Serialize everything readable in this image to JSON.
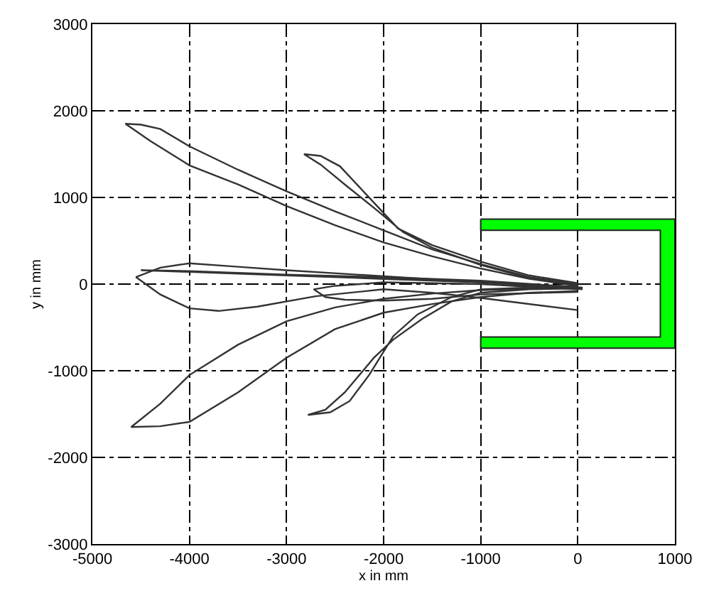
{
  "chart_data": {
    "type": "line",
    "xlabel": "x in mm",
    "ylabel": "y in mm",
    "xlim": [
      -5000,
      1000
    ],
    "xticks": [
      -5000,
      -4000,
      -3000,
      -2000,
      -1000,
      0,
      1000
    ],
    "ylim": [
      -3000,
      3000
    ],
    "yticks": [
      -3000,
      -2000,
      -1000,
      0,
      1000,
      2000,
      3000
    ],
    "grid": true,
    "marker": "none",
    "line_style": "solid",
    "series": [
      {
        "color": "#00ff00",
        "type": "area",
        "x": [
          -1000,
          1000,
          1000,
          -1000,
          -1000,
          850,
          850,
          -1000,
          -1000
        ],
        "values": [
          750,
          750,
          -740,
          -740,
          -610,
          -610,
          620,
          620,
          750
        ]
      },
      {
        "color": "#333333",
        "x": [
          0,
          -500,
          -1000,
          -1500,
          -2000,
          -2500,
          -3000,
          -3500,
          -4000,
          -4400,
          -4660,
          -4500,
          -4300,
          -4000,
          -3500,
          -3000,
          -2500,
          -2000,
          -1500,
          -1000,
          -500,
          0
        ],
        "values": [
          -20,
          60,
          180,
          320,
          480,
          680,
          900,
          1150,
          1370,
          1650,
          1850,
          1840,
          1790,
          1590,
          1320,
          1070,
          840,
          620,
          400,
          230,
          80,
          0
        ]
      },
      {
        "color": "#333333",
        "x": [
          0,
          -500,
          -1000,
          -1500,
          -1800,
          -2100,
          -2400,
          -2650,
          -2820,
          -2650,
          -2450,
          -2250,
          -2050,
          -1850,
          -1500,
          -1000,
          -500,
          0
        ],
        "values": [
          -10,
          70,
          220,
          420,
          600,
          880,
          1150,
          1380,
          1500,
          1480,
          1360,
          1120,
          880,
          640,
          450,
          260,
          100,
          10
        ]
      },
      {
        "color": "#333333",
        "x": [
          50,
          -1000,
          -2000,
          -3000,
          -4000,
          -4500,
          -4000,
          -3000,
          -2000,
          -1000,
          50
        ],
        "values": [
          -40,
          40,
          80,
          110,
          150,
          160,
          140,
          100,
          60,
          20,
          -60
        ]
      },
      {
        "color": "#333333",
        "x": [
          0,
          -1000,
          -2000,
          -3000,
          -3500,
          -4000,
          -4300,
          -4550,
          -4300,
          -4000,
          -3700,
          -3300,
          -2700,
          -2000,
          -1500,
          -1000,
          0
        ],
        "values": [
          -30,
          20,
          90,
          160,
          200,
          240,
          190,
          80,
          -120,
          -280,
          -310,
          -260,
          -140,
          -60,
          -100,
          -160,
          -300
        ]
      },
      {
        "color": "#333333",
        "x": [
          0,
          -1000,
          -2000,
          -2500,
          -2720,
          -2600,
          -2400,
          -2000,
          -1500,
          -1000,
          0
        ],
        "values": [
          -60,
          0,
          20,
          -20,
          -60,
          -150,
          -180,
          -190,
          -170,
          -120,
          -90
        ]
      },
      {
        "color": "#333333",
        "x": [
          0,
          -500,
          -1000,
          -1500,
          -2000,
          -2500,
          -3000,
          -3500,
          -4000,
          -4300,
          -4600,
          -4300,
          -4000,
          -3500,
          -3000,
          -2500,
          -2000,
          -1500,
          -1000,
          0
        ],
        "values": [
          -80,
          -100,
          -150,
          -230,
          -330,
          -520,
          -850,
          -1250,
          -1590,
          -1640,
          -1650,
          -1380,
          -1050,
          -700,
          -430,
          -270,
          -170,
          -110,
          -70,
          -40
        ]
      },
      {
        "color": "#333333",
        "x": [
          0,
          -500,
          -1000,
          -1300,
          -1600,
          -1900,
          -2100,
          -2400,
          -2600,
          -2780,
          -2550,
          -2350,
          -2150,
          -1900,
          -1650,
          -1300,
          -1000,
          0
        ],
        "values": [
          -50,
          -60,
          -100,
          -200,
          -400,
          -640,
          -850,
          -1250,
          -1450,
          -1510,
          -1480,
          -1350,
          -1050,
          -600,
          -350,
          -150,
          -60,
          -20
        ]
      }
    ]
  }
}
